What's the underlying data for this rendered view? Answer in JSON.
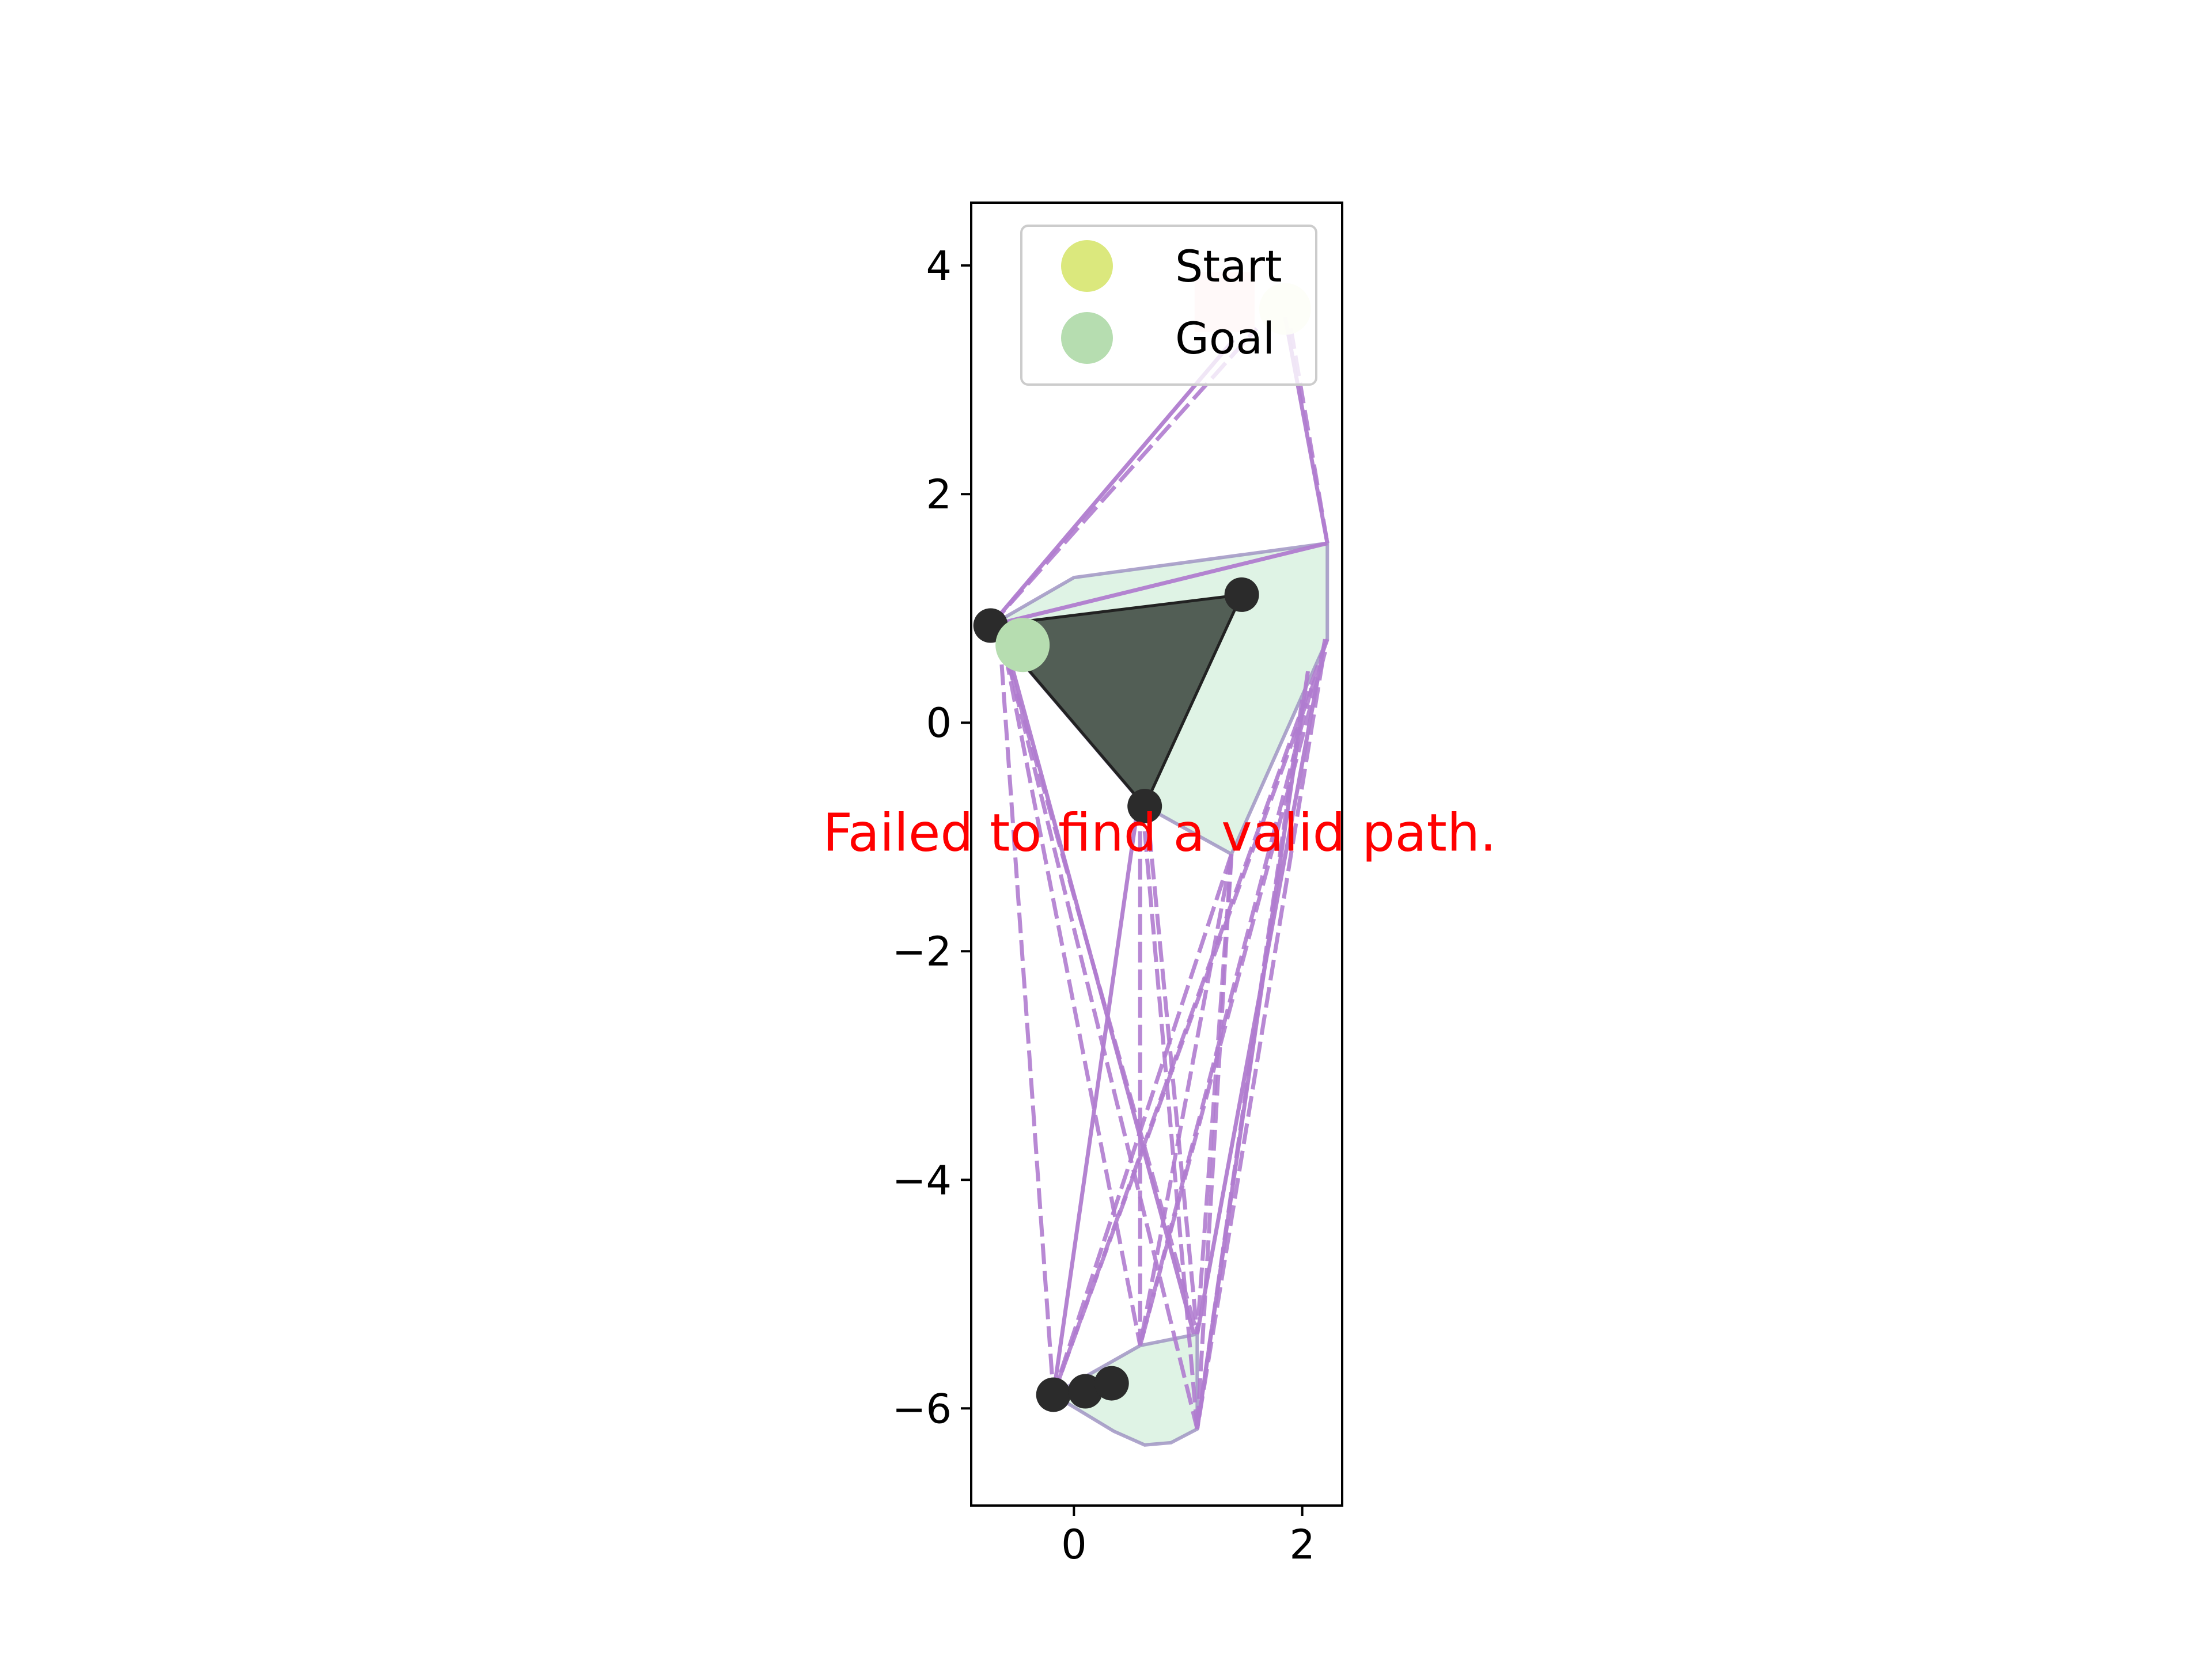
{
  "chart_data": {
    "type": "scatter",
    "title": "",
    "xlabel": "",
    "ylabel": "",
    "xlim": [
      -0.9,
      2.35
    ],
    "ylim": [
      -6.85,
      4.55
    ],
    "x_ticks": [
      0,
      2
    ],
    "y_ticks": [
      4,
      2,
      0,
      -2,
      -4,
      -6
    ],
    "grid": false,
    "legend_position": "upper right",
    "legend": [
      {
        "name": "Start",
        "color": "#dbe87d"
      },
      {
        "name": "Goal",
        "color": "#b6ddb0"
      }
    ],
    "annotation": {
      "text": "Failed to find a valid path.",
      "x": 0.75,
      "y": -1.12,
      "color": "#ff0000"
    },
    "start_point": {
      "x": 1.85,
      "y": 3.62
    },
    "goal_point": {
      "x": -0.45,
      "y": 0.68
    },
    "start_marker": {
      "x": 1.32,
      "y": 3.68,
      "color": "#ffd6d6"
    },
    "obstacles": [
      {
        "name": "triangle-obstacle",
        "fill": "#3a433c",
        "vertices": [
          [
            -0.73,
            0.85
          ],
          [
            1.47,
            1.12
          ],
          [
            0.62,
            -0.73
          ]
        ]
      }
    ],
    "expanded_regions": [
      {
        "name": "upper-region",
        "fill": "#dff3e5",
        "vertices": [
          [
            -0.73,
            0.85
          ],
          [
            0.0,
            1.27
          ],
          [
            2.22,
            1.57
          ],
          [
            2.22,
            0.73
          ],
          [
            1.38,
            -1.15
          ],
          [
            0.62,
            -0.73
          ]
        ]
      },
      {
        "name": "lower-region",
        "fill": "#dff3e5",
        "vertices": [
          [
            -0.18,
            -5.88
          ],
          [
            0.58,
            -5.45
          ],
          [
            1.08,
            -5.35
          ],
          [
            1.08,
            -6.18
          ],
          [
            0.85,
            -6.3
          ],
          [
            0.62,
            -6.32
          ],
          [
            0.35,
            -6.2
          ]
        ]
      }
    ],
    "vertices": [
      {
        "x": -0.73,
        "y": 0.85
      },
      {
        "x": 1.47,
        "y": 1.12
      },
      {
        "x": 0.62,
        "y": -0.73
      },
      {
        "x": -0.18,
        "y": -5.88
      },
      {
        "x": 0.1,
        "y": -5.85
      },
      {
        "x": 0.33,
        "y": -5.78
      }
    ],
    "edges": {
      "color": "#b07ccf",
      "solid": [
        [
          [
            -0.73,
            0.85
          ],
          [
            1.4,
            3.35
          ]
        ],
        [
          [
            1.85,
            3.55
          ],
          [
            2.22,
            1.57
          ]
        ],
        [
          [
            -0.73,
            0.85
          ],
          [
            2.22,
            1.57
          ]
        ],
        [
          [
            -0.6,
            0.7
          ],
          [
            1.05,
            -5.35
          ]
        ],
        [
          [
            0.55,
            -0.8
          ],
          [
            -0.18,
            -5.88
          ]
        ],
        [
          [
            2.05,
            0.45
          ],
          [
            1.08,
            -6.18
          ]
        ],
        [
          [
            2.2,
            0.73
          ],
          [
            1.08,
            -5.35
          ]
        ]
      ],
      "dashed": [
        [
          [
            -0.73,
            0.85
          ],
          [
            1.6,
            3.45
          ]
        ],
        [
          [
            1.9,
            3.45
          ],
          [
            2.22,
            1.57
          ]
        ],
        [
          [
            -0.65,
            0.75
          ],
          [
            -0.18,
            -5.88
          ]
        ],
        [
          [
            -0.63,
            0.72
          ],
          [
            1.08,
            -5.35
          ]
        ],
        [
          [
            -0.6,
            0.6
          ],
          [
            0.58,
            -5.45
          ]
        ],
        [
          [
            -0.58,
            0.55
          ],
          [
            1.08,
            -6.18
          ]
        ],
        [
          [
            0.58,
            -0.95
          ],
          [
            0.58,
            -5.45
          ]
        ],
        [
          [
            0.66,
            -0.95
          ],
          [
            1.08,
            -5.35
          ]
        ],
        [
          [
            0.62,
            -0.95
          ],
          [
            1.08,
            -6.18
          ]
        ],
        [
          [
            2.22,
            0.73
          ],
          [
            -0.18,
            -5.88
          ]
        ],
        [
          [
            2.2,
            0.62
          ],
          [
            0.58,
            -5.45
          ]
        ],
        [
          [
            2.18,
            0.55
          ],
          [
            1.08,
            -6.18
          ]
        ],
        [
          [
            2.12,
            0.4
          ],
          [
            -0.18,
            -5.88
          ]
        ],
        [
          [
            2.08,
            0.3
          ],
          [
            0.58,
            -5.45
          ]
        ],
        [
          [
            1.38,
            -1.15
          ],
          [
            -0.18,
            -5.88
          ]
        ],
        [
          [
            1.38,
            -1.15
          ],
          [
            0.58,
            -5.45
          ]
        ],
        [
          [
            1.38,
            -1.15
          ],
          [
            1.08,
            -5.35
          ]
        ],
        [
          [
            1.38,
            -1.15
          ],
          [
            1.08,
            -6.18
          ]
        ],
        [
          [
            2.0,
            0.2
          ],
          [
            1.08,
            -6.18
          ]
        ]
      ]
    }
  }
}
